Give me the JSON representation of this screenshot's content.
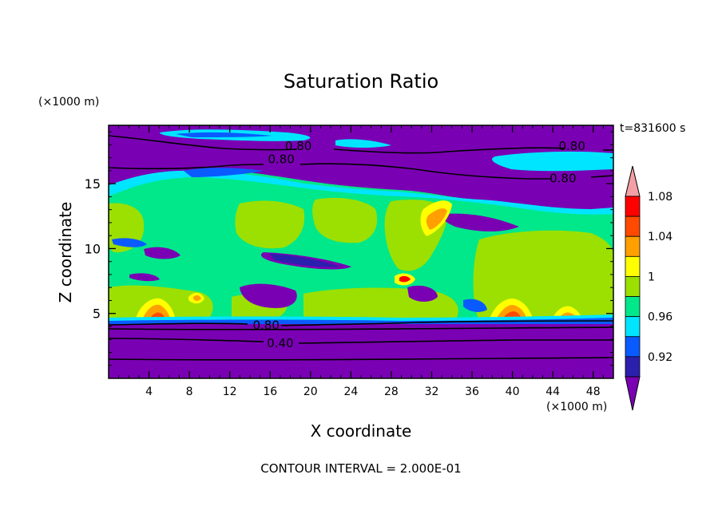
{
  "chart_data": {
    "type": "contour",
    "title": "Saturation Ratio",
    "xlabel": "X coordinate",
    "ylabel": "Z coordinate",
    "x_unit": "(×1000 m)",
    "y_unit": "(×1000 m)",
    "time_label": "t=831600 s",
    "contour_interval_label": "CONTOUR INTERVAL = 2.000E-01",
    "xlim": [
      0,
      50
    ],
    "ylim": [
      0,
      19.5
    ],
    "x_ticks": [
      4,
      8,
      12,
      16,
      20,
      24,
      28,
      32,
      36,
      40,
      44,
      48
    ],
    "y_ticks": [
      5,
      10,
      15
    ],
    "contour_labels": [
      {
        "text": "0.80",
        "x": 18.8,
        "z": 17.9
      },
      {
        "text": "0.80",
        "x": 17.1,
        "z": 16.9
      },
      {
        "text": "0.80",
        "x": 45.9,
        "z": 17.9
      },
      {
        "text": "0.80",
        "x": 45.0,
        "z": 15.4
      },
      {
        "text": "0.80",
        "x": 15.6,
        "z": 4.1
      },
      {
        "text": "0.40",
        "x": 17.0,
        "z": 2.7
      }
    ],
    "colorbar": {
      "levels": [
        0.92,
        0.96,
        1,
        1.04,
        1.08
      ],
      "tick_labels": [
        "0.92",
        "0.96",
        "1",
        "1.04",
        "1.08"
      ],
      "colors": [
        "#7a00b4",
        "#2b1fae",
        "#0a5bff",
        "#00e5ff",
        "#00e88a",
        "#9be000",
        "#ffff00",
        "#ffa000",
        "#ff4a00",
        "#ff0000",
        "#f2a0a6"
      ]
    }
  }
}
